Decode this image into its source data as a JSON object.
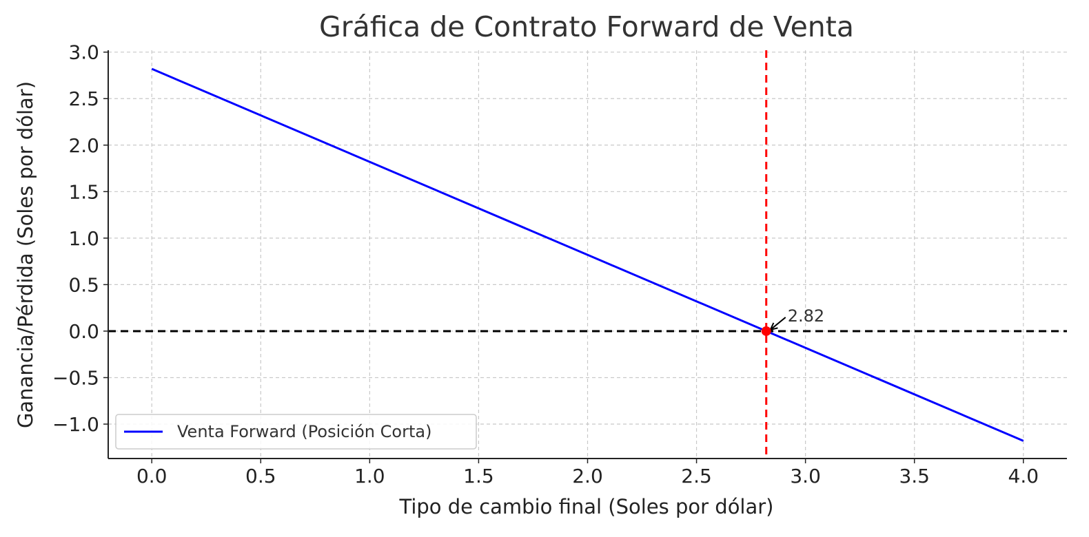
{
  "chart_data": {
    "type": "line",
    "title": "Gráfica de Contrato Forward de Venta",
    "xlabel": "Tipo de cambio final (Soles por dólar)",
    "ylabel": "Ganancia/Pérdida (Soles por dólar)",
    "xlim": [
      -0.2,
      4.2
    ],
    "ylim": [
      -1.37,
      3.02
    ],
    "x_ticks": [
      0.0,
      0.5,
      1.0,
      1.5,
      2.0,
      2.5,
      3.0,
      3.5,
      4.0
    ],
    "x_tick_labels": [
      "0.0",
      "0.5",
      "1.0",
      "1.5",
      "2.0",
      "2.5",
      "3.0",
      "3.5",
      "4.0"
    ],
    "y_ticks": [
      -1.0,
      -0.5,
      0.0,
      0.5,
      1.0,
      1.5,
      2.0,
      2.5,
      3.0
    ],
    "y_tick_labels": [
      "−1.0",
      "−0.5",
      "0.0",
      "0.5",
      "1.0",
      "1.5",
      "2.0",
      "2.5",
      "3.0"
    ],
    "grid": true,
    "legend_position": "lower-left",
    "series": [
      {
        "name": "Venta Forward (Posición Corta)",
        "color": "#0000ff",
        "x": [
          0.0,
          4.0
        ],
        "y": [
          2.82,
          -1.18
        ]
      }
    ],
    "reference_lines": {
      "horizontal": {
        "y": 0.0,
        "color": "#000000",
        "style": "dashed"
      },
      "vertical": {
        "x": 2.82,
        "color": "#ff0000",
        "style": "dashed"
      }
    },
    "annotation": {
      "text": "2.82",
      "x": 2.82,
      "y": 0.0,
      "point_color": "#ff0000"
    },
    "colors": {
      "grid": "#c8c8c8",
      "axis": "#222222"
    }
  }
}
